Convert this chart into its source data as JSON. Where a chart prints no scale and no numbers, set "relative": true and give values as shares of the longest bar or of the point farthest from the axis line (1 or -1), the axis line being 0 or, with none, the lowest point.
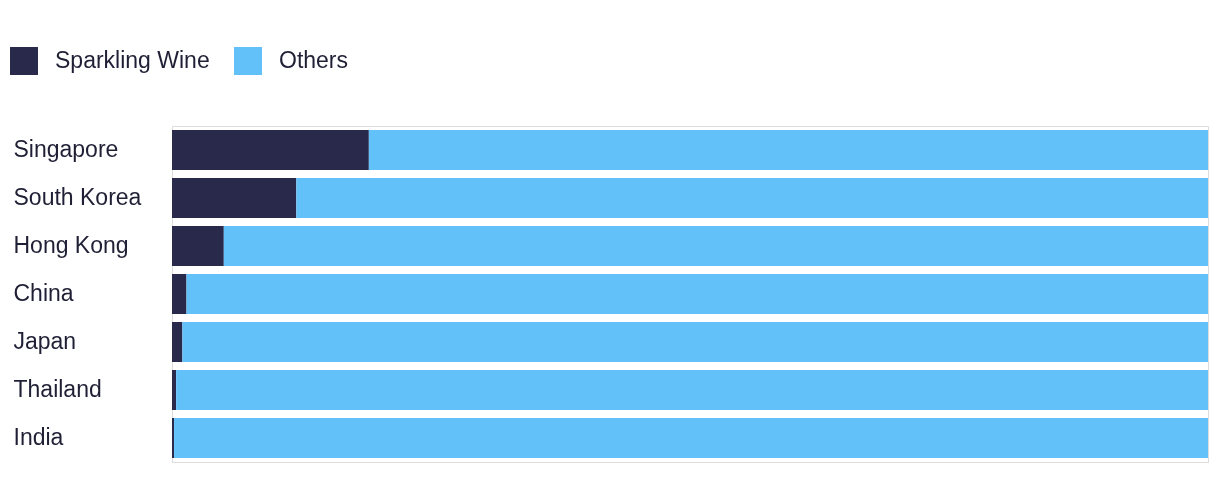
{
  "chart_data": {
    "type": "bar",
    "orientation": "horizontal",
    "stacked": true,
    "relative": true,
    "legend": "top left",
    "categories": [
      "Singapore",
      "South Korea",
      "Hong Kong",
      "China",
      "Japan",
      "Thailand",
      "India"
    ],
    "series": [
      {
        "name": "Sparkling Wine",
        "color": "#29294b",
        "values": [
          0.19,
          0.12,
          0.05,
          0.014,
          0.01,
          0.004,
          0.002
        ]
      },
      {
        "name": "Others",
        "color": "#63c1f9",
        "values": [
          0.81,
          0.88,
          0.95,
          0.986,
          0.99,
          0.996,
          0.998
        ]
      }
    ]
  }
}
